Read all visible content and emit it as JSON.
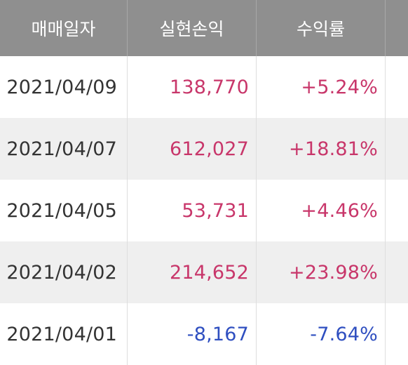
{
  "header": {
    "date_label": "매매일자",
    "pnl_label": "실현손익",
    "rate_label": "수익률"
  },
  "rows": [
    {
      "date": "2021/04/09",
      "pnl": "138,770",
      "rate": "+5.24%",
      "sign": "pos"
    },
    {
      "date": "2021/04/07",
      "pnl": "612,027",
      "rate": "+18.81%",
      "sign": "pos"
    },
    {
      "date": "2021/04/05",
      "pnl": "53,731",
      "rate": "+4.46%",
      "sign": "pos"
    },
    {
      "date": "2021/04/02",
      "pnl": "214,652",
      "rate": "+23.98%",
      "sign": "pos"
    },
    {
      "date": "2021/04/01",
      "pnl": "-8,167",
      "rate": "-7.64%",
      "sign": "neg"
    }
  ],
  "colors": {
    "header_bg": "#8f8f8f",
    "positive": "#c8366a",
    "negative": "#2f4fc0",
    "alt_row": "#efefef"
  }
}
